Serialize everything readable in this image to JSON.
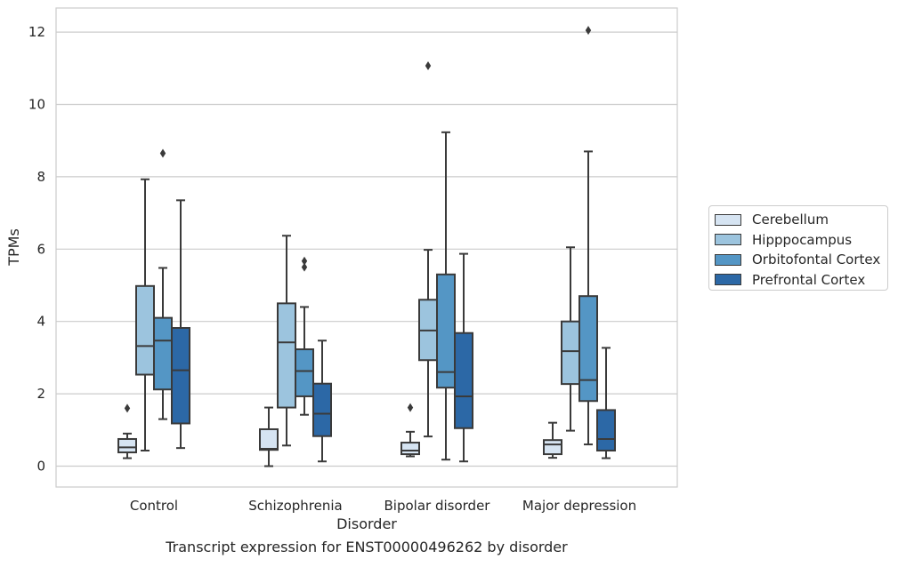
{
  "caption": "Transcript expression for ENST00000496262 by disorder",
  "chart_data": {
    "type": "box",
    "xlabel": "Disorder",
    "ylabel": "TPMs",
    "ylim": [
      -0.58,
      12.65
    ],
    "yticks": [
      0,
      2,
      4,
      6,
      8,
      10,
      12
    ],
    "grid": "horizontal",
    "legend_position": "right",
    "categories": [
      "Control",
      "Schizophrenia",
      "Bipolar disorder",
      "Major depression"
    ],
    "series": [
      {
        "name": "Cerebellum",
        "color": "#d6e4f2",
        "boxes": [
          {
            "whislo": 0.22,
            "q1": 0.38,
            "med": 0.52,
            "q3": 0.75,
            "whishi": 0.9,
            "fliers": [
              1.6
            ]
          },
          {
            "whislo": 0.0,
            "q1": 0.45,
            "med": 0.48,
            "q3": 1.02,
            "whishi": 1.62,
            "fliers": []
          },
          {
            "whislo": 0.27,
            "q1": 0.33,
            "med": 0.43,
            "q3": 0.65,
            "whishi": 0.95,
            "fliers": [
              1.62
            ]
          },
          {
            "whislo": 0.23,
            "q1": 0.33,
            "med": 0.6,
            "q3": 0.72,
            "whishi": 1.2,
            "fliers": []
          }
        ]
      },
      {
        "name": "Hipppocampus",
        "color": "#9cc4de",
        "boxes": [
          {
            "whislo": 0.43,
            "q1": 2.53,
            "med": 3.32,
            "q3": 4.98,
            "whishi": 7.93,
            "fliers": []
          },
          {
            "whislo": 0.57,
            "q1": 1.62,
            "med": 3.42,
            "q3": 4.5,
            "whishi": 6.37,
            "fliers": []
          },
          {
            "whislo": 0.82,
            "q1": 2.93,
            "med": 3.75,
            "q3": 4.6,
            "whishi": 5.98,
            "fliers": [
              11.07
            ]
          },
          {
            "whislo": 0.98,
            "q1": 2.27,
            "med": 3.18,
            "q3": 4.0,
            "whishi": 6.05,
            "fliers": []
          }
        ]
      },
      {
        "name": "Orbitofontal Cortex",
        "color": "#5496c5",
        "boxes": [
          {
            "whislo": 1.3,
            "q1": 2.12,
            "med": 3.47,
            "q3": 4.1,
            "whishi": 5.48,
            "fliers": [
              8.65
            ]
          },
          {
            "whislo": 1.42,
            "q1": 1.93,
            "med": 2.63,
            "q3": 3.23,
            "whishi": 4.4,
            "fliers": [
              5.5,
              5.67
            ]
          },
          {
            "whislo": 0.18,
            "q1": 2.17,
            "med": 2.6,
            "q3": 5.3,
            "whishi": 9.23,
            "fliers": []
          },
          {
            "whislo": 0.6,
            "q1": 1.8,
            "med": 2.38,
            "q3": 4.7,
            "whishi": 8.7,
            "fliers": [
              12.05
            ]
          }
        ]
      },
      {
        "name": "Prefrontal Cortex",
        "color": "#2c68a6",
        "boxes": [
          {
            "whislo": 0.5,
            "q1": 1.18,
            "med": 2.65,
            "q3": 3.82,
            "whishi": 7.35,
            "fliers": []
          },
          {
            "whislo": 0.13,
            "q1": 0.83,
            "med": 1.45,
            "q3": 2.28,
            "whishi": 3.47,
            "fliers": []
          },
          {
            "whislo": 0.13,
            "q1": 1.05,
            "med": 1.93,
            "q3": 3.68,
            "whishi": 5.87,
            "fliers": []
          },
          {
            "whislo": 0.22,
            "q1": 0.43,
            "med": 0.75,
            "q3": 1.55,
            "whishi": 3.27,
            "fliers": []
          }
        ]
      }
    ]
  }
}
